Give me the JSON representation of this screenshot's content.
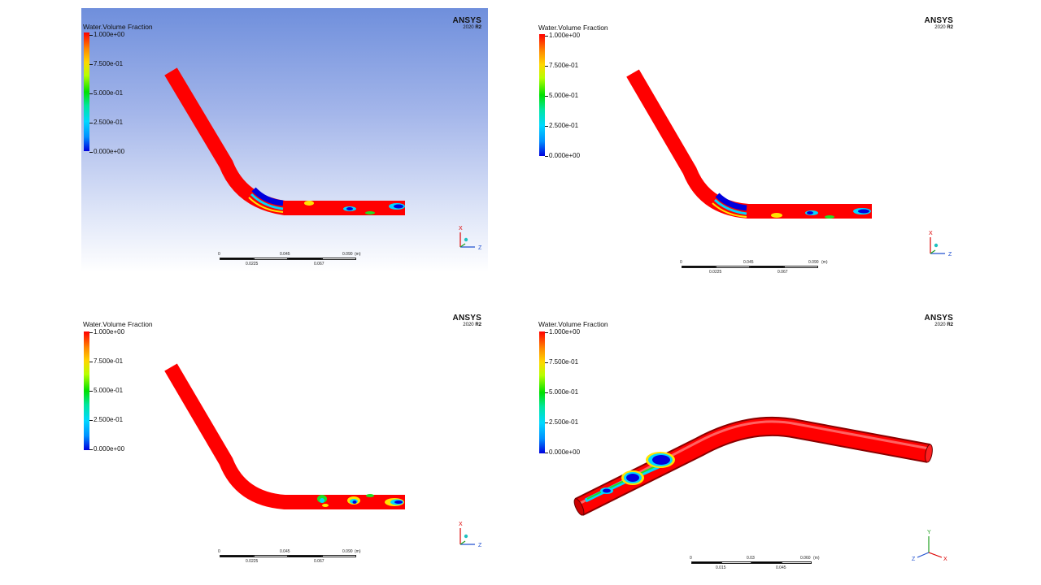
{
  "legend": {
    "title": "Water.Volume Fraction",
    "ticks": [
      "1.000e+00",
      "7.500e-01",
      "5.000e-01",
      "2.500e-01",
      "0.000e+00"
    ]
  },
  "brand": {
    "name": "ANSYS",
    "version": "2020",
    "release": "R2"
  },
  "panels": [
    {
      "scale": {
        "top_labels": [
          "0",
          "0.045",
          "0.090"
        ],
        "unit": "(m)",
        "bottom_labels": [
          "0.0225",
          "0.067"
        ]
      },
      "axes": {
        "labels": [
          "X",
          "Z"
        ]
      }
    },
    {
      "scale": {
        "top_labels": [
          "0",
          "0.045",
          "0.090"
        ],
        "unit": "(m)",
        "bottom_labels": [
          "0.0225",
          "0.067"
        ]
      },
      "axes": {
        "labels": [
          "X",
          "Z"
        ]
      }
    },
    {
      "scale": {
        "top_labels": [
          "0",
          "0.045",
          "0.090"
        ],
        "unit": "(m)",
        "bottom_labels": [
          "0.0225",
          "0.067"
        ]
      },
      "axes": {
        "labels": [
          "X",
          "Z"
        ]
      }
    },
    {
      "scale": {
        "top_labels": [
          "0",
          "0.03",
          "0.060"
        ],
        "unit": "(m)",
        "bottom_labels": [
          "0.015",
          "0.045"
        ]
      },
      "axes": {
        "labels": [
          "Y",
          "Z",
          "X"
        ]
      }
    }
  ],
  "colors": {
    "water": "#ff0000",
    "air": "#0000dd",
    "interface_green": "#22dd22",
    "interface_cyan": "#00d8ff",
    "interface_yellow": "#ffe400"
  }
}
